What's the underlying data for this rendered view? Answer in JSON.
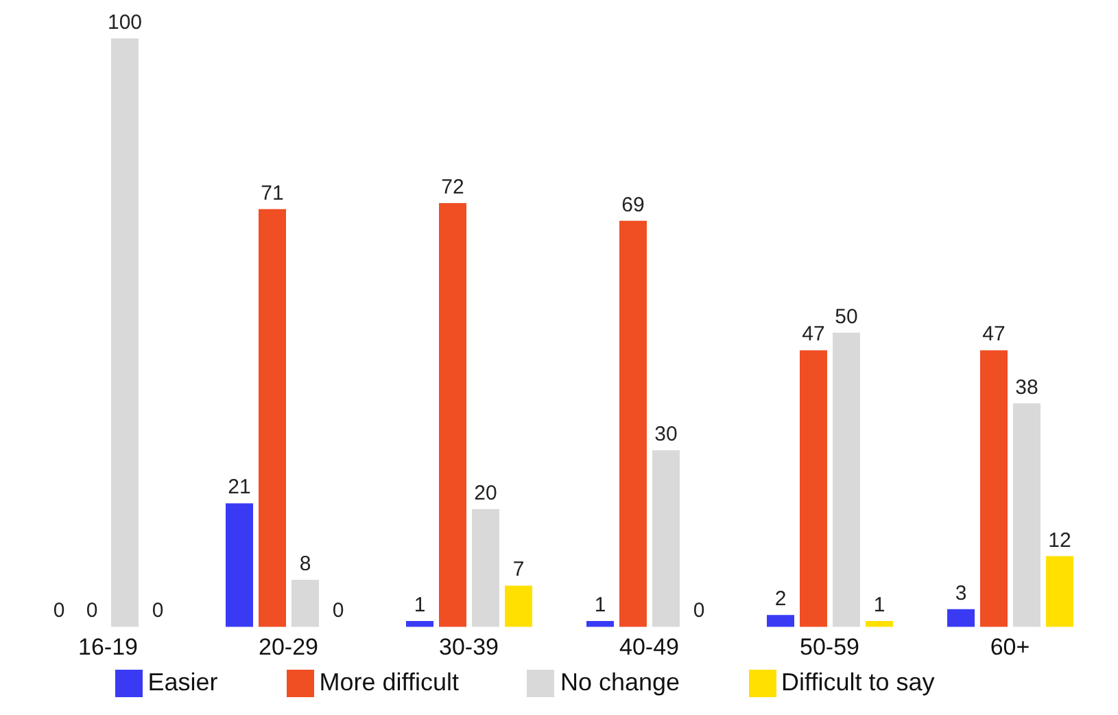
{
  "chart_data": {
    "type": "bar",
    "categories": [
      "16-19",
      "20-29",
      "30-39",
      "40-49",
      "50-59",
      "60+"
    ],
    "series": [
      {
        "name": "Easier",
        "color": "#3a3af5",
        "values": [
          0,
          21,
          1,
          1,
          2,
          3
        ]
      },
      {
        "name": "More difficult",
        "color": "#f04e23",
        "values": [
          0,
          71,
          72,
          69,
          47,
          47
        ]
      },
      {
        "name": "No change",
        "color": "#d9d9d9",
        "values": [
          100,
          8,
          20,
          30,
          50,
          38
        ]
      },
      {
        "name": "Difficult to say",
        "color": "#ffe000",
        "values": [
          0,
          0,
          7,
          0,
          1,
          12
        ]
      }
    ],
    "data_labels": true,
    "legend": "bottom",
    "grid": false
  }
}
